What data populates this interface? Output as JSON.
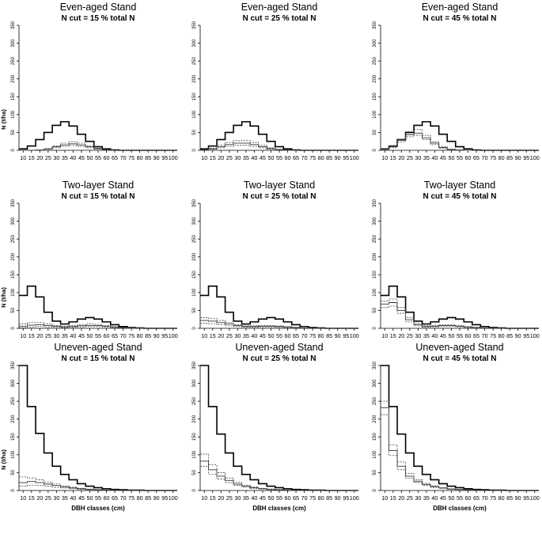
{
  "figure": {
    "x_label": "DBH classes (cm)",
    "y_label": "N (t/ha)"
  },
  "chart_data": [
    {
      "type": "line",
      "title": "Even-aged Stand",
      "subtitle": "N cut =  15 % total N",
      "xlabel": "",
      "ylabel": "N (t/ha)",
      "ylim": [
        0,
        350
      ],
      "xlim": [
        10,
        100
      ],
      "x": [
        10,
        15,
        20,
        25,
        30,
        35,
        40,
        45,
        50,
        55,
        60,
        65,
        70,
        75,
        80,
        85,
        90,
        95,
        100
      ],
      "series": [
        {
          "name": "",
          "style": "solid-bold",
          "values": [
            4,
            12,
            30,
            50,
            70,
            80,
            68,
            45,
            25,
            10,
            4,
            1,
            0,
            0,
            0,
            0,
            0,
            0,
            0
          ]
        },
        {
          "name": "",
          "style": "solid",
          "values": [
            0,
            0,
            1,
            4,
            10,
            15,
            18,
            15,
            10,
            5,
            2,
            0,
            0,
            0,
            0,
            0,
            0,
            0,
            0
          ]
        },
        {
          "name": "",
          "style": "dotted",
          "values": [
            0,
            0,
            1,
            5,
            12,
            20,
            24,
            20,
            13,
            6,
            2,
            0,
            0,
            0,
            0,
            0,
            0,
            0,
            0
          ]
        },
        {
          "name": "",
          "style": "dotted",
          "values": [
            0,
            0,
            0,
            3,
            7,
            11,
            13,
            11,
            7,
            3,
            1,
            0,
            0,
            0,
            0,
            0,
            0,
            0,
            0
          ]
        }
      ]
    },
    {
      "type": "line",
      "title": "Even-aged Stand",
      "subtitle": "N cut =  25 % total N",
      "xlabel": "",
      "ylabel": "",
      "ylim": [
        0,
        350
      ],
      "xlim": [
        10,
        100
      ],
      "x": [
        10,
        15,
        20,
        25,
        30,
        35,
        40,
        45,
        50,
        55,
        60,
        65,
        70,
        75,
        80,
        85,
        90,
        95,
        100
      ],
      "series": [
        {
          "name": "",
          "style": "solid-bold",
          "values": [
            4,
            12,
            30,
            50,
            70,
            80,
            68,
            45,
            25,
            10,
            4,
            1,
            0,
            0,
            0,
            0,
            0,
            0,
            0
          ]
        },
        {
          "name": "",
          "style": "solid",
          "values": [
            1,
            4,
            10,
            16,
            20,
            20,
            16,
            10,
            5,
            2,
            1,
            0,
            0,
            0,
            0,
            0,
            0,
            0,
            0
          ]
        },
        {
          "name": "",
          "style": "dotted",
          "values": [
            2,
            6,
            14,
            22,
            27,
            28,
            22,
            14,
            7,
            3,
            1,
            0,
            0,
            0,
            0,
            0,
            0,
            0,
            0
          ]
        },
        {
          "name": "",
          "style": "dotted",
          "values": [
            1,
            3,
            7,
            11,
            14,
            14,
            11,
            7,
            3,
            1,
            0,
            0,
            0,
            0,
            0,
            0,
            0,
            0,
            0
          ]
        }
      ]
    },
    {
      "type": "line",
      "title": "Even-aged Stand",
      "subtitle": "N cut =  45 % total N",
      "xlabel": "",
      "ylabel": "",
      "ylim": [
        0,
        350
      ],
      "xlim": [
        10,
        100
      ],
      "x": [
        10,
        15,
        20,
        25,
        30,
        35,
        40,
        45,
        50,
        55,
        60,
        65,
        70,
        75,
        80,
        85,
        90,
        95,
        100
      ],
      "series": [
        {
          "name": "",
          "style": "solid-bold",
          "values": [
            4,
            12,
            30,
            50,
            70,
            80,
            68,
            45,
            25,
            10,
            4,
            1,
            0,
            0,
            0,
            0,
            0,
            0,
            0
          ]
        },
        {
          "name": "",
          "style": "solid",
          "values": [
            3,
            10,
            28,
            44,
            48,
            35,
            20,
            8,
            3,
            1,
            0,
            0,
            0,
            0,
            0,
            0,
            0,
            0,
            0
          ]
        },
        {
          "name": "",
          "style": "dotted",
          "values": [
            4,
            12,
            30,
            52,
            58,
            42,
            24,
            10,
            3,
            1,
            0,
            0,
            0,
            0,
            0,
            0,
            0,
            0,
            0
          ]
        },
        {
          "name": "",
          "style": "dotted",
          "values": [
            2,
            8,
            24,
            38,
            42,
            30,
            16,
            6,
            2,
            0,
            0,
            0,
            0,
            0,
            0,
            0,
            0,
            0,
            0
          ]
        }
      ]
    },
    {
      "type": "line",
      "title": "Two-layer Stand",
      "subtitle": "N cut =  15 % total N",
      "xlabel": "",
      "ylabel": "N (t/ha)",
      "ylim": [
        0,
        350
      ],
      "xlim": [
        10,
        100
      ],
      "x": [
        10,
        15,
        20,
        25,
        30,
        35,
        40,
        45,
        50,
        55,
        60,
        65,
        70,
        75,
        80,
        85,
        90,
        95,
        100
      ],
      "series": [
        {
          "name": "",
          "style": "solid-bold",
          "values": [
            92,
            118,
            88,
            45,
            20,
            12,
            18,
            26,
            30,
            26,
            18,
            10,
            5,
            2,
            1,
            0,
            0,
            0,
            0
          ]
        },
        {
          "name": "",
          "style": "solid",
          "values": [
            6,
            9,
            10,
            8,
            6,
            4,
            5,
            7,
            8,
            8,
            6,
            3,
            2,
            1,
            0,
            0,
            0,
            0,
            0
          ]
        },
        {
          "name": "",
          "style": "dotted",
          "values": [
            12,
            16,
            16,
            12,
            8,
            6,
            8,
            10,
            12,
            11,
            8,
            5,
            2,
            1,
            0,
            0,
            0,
            0,
            0
          ]
        },
        {
          "name": "",
          "style": "dotted",
          "values": [
            2,
            4,
            5,
            4,
            3,
            2,
            3,
            4,
            5,
            5,
            4,
            2,
            1,
            0,
            0,
            0,
            0,
            0,
            0
          ]
        }
      ]
    },
    {
      "type": "line",
      "title": "Two-layer Stand",
      "subtitle": "N cut =  25 % total N",
      "xlabel": "",
      "ylabel": "",
      "ylim": [
        0,
        350
      ],
      "xlim": [
        10,
        100
      ],
      "x": [
        10,
        15,
        20,
        25,
        30,
        35,
        40,
        45,
        50,
        55,
        60,
        65,
        70,
        75,
        80,
        85,
        90,
        95,
        100
      ],
      "series": [
        {
          "name": "",
          "style": "solid-bold",
          "values": [
            92,
            118,
            88,
            45,
            20,
            12,
            18,
            26,
            30,
            26,
            18,
            10,
            5,
            2,
            1,
            0,
            0,
            0,
            0
          ]
        },
        {
          "name": "",
          "style": "solid",
          "values": [
            22,
            20,
            16,
            12,
            8,
            5,
            5,
            6,
            6,
            5,
            4,
            2,
            1,
            0,
            0,
            0,
            0,
            0,
            0
          ]
        },
        {
          "name": "",
          "style": "dotted",
          "values": [
            30,
            28,
            22,
            16,
            10,
            7,
            7,
            8,
            8,
            7,
            5,
            3,
            1,
            0,
            0,
            0,
            0,
            0,
            0
          ]
        },
        {
          "name": "",
          "style": "dotted",
          "values": [
            14,
            13,
            10,
            7,
            5,
            3,
            3,
            4,
            4,
            3,
            2,
            1,
            0,
            0,
            0,
            0,
            0,
            0,
            0
          ]
        }
      ]
    },
    {
      "type": "line",
      "title": "Two-layer Stand",
      "subtitle": "N cut =  45 % total N",
      "xlabel": "",
      "ylabel": "",
      "ylim": [
        0,
        350
      ],
      "xlim": [
        10,
        100
      ],
      "x": [
        10,
        15,
        20,
        25,
        30,
        35,
        40,
        45,
        50,
        55,
        60,
        65,
        70,
        75,
        80,
        85,
        90,
        95,
        100
      ],
      "series": [
        {
          "name": "",
          "style": "solid-bold",
          "values": [
            92,
            118,
            88,
            45,
            20,
            12,
            18,
            26,
            30,
            26,
            18,
            10,
            5,
            2,
            1,
            0,
            0,
            0,
            0
          ]
        },
        {
          "name": "",
          "style": "solid",
          "values": [
            68,
            72,
            50,
            24,
            10,
            5,
            6,
            8,
            8,
            6,
            4,
            2,
            1,
            0,
            0,
            0,
            0,
            0,
            0
          ]
        },
        {
          "name": "",
          "style": "dotted",
          "values": [
            76,
            82,
            58,
            30,
            14,
            7,
            8,
            10,
            10,
            8,
            5,
            3,
            1,
            0,
            0,
            0,
            0,
            0,
            0
          ]
        },
        {
          "name": "",
          "style": "dotted",
          "values": [
            58,
            62,
            42,
            18,
            7,
            3,
            4,
            5,
            5,
            4,
            2,
            1,
            0,
            0,
            0,
            0,
            0,
            0,
            0
          ]
        }
      ]
    },
    {
      "type": "line",
      "title": "Uneven-aged Stand",
      "subtitle": "N cut =  15 % total N",
      "xlabel": "DBH classes (cm)",
      "ylabel": "N (t/ha)",
      "ylim": [
        0,
        350
      ],
      "xlim": [
        10,
        100
      ],
      "x": [
        10,
        15,
        20,
        25,
        30,
        35,
        40,
        45,
        50,
        55,
        60,
        65,
        70,
        75,
        80,
        85,
        90,
        95,
        100
      ],
      "series": [
        {
          "name": "",
          "style": "solid-bold",
          "values": [
            350,
            235,
            160,
            105,
            68,
            45,
            30,
            19,
            12,
            8,
            5,
            3,
            2,
            1,
            1,
            0,
            0,
            0,
            0
          ]
        },
        {
          "name": "",
          "style": "solid",
          "values": [
            22,
            25,
            22,
            18,
            14,
            10,
            7,
            5,
            3,
            2,
            1,
            1,
            0,
            0,
            0,
            0,
            0,
            0,
            0
          ]
        },
        {
          "name": "",
          "style": "dotted",
          "values": [
            38,
            35,
            30,
            24,
            18,
            13,
            9,
            6,
            4,
            3,
            2,
            1,
            0,
            0,
            0,
            0,
            0,
            0,
            0
          ]
        },
        {
          "name": "",
          "style": "dotted",
          "values": [
            12,
            15,
            14,
            12,
            9,
            7,
            5,
            3,
            2,
            1,
            1,
            0,
            0,
            0,
            0,
            0,
            0,
            0,
            0
          ]
        }
      ]
    },
    {
      "type": "line",
      "title": "Uneven-aged Stand",
      "subtitle": "N cut =  25 % total N",
      "xlabel": "DBH classes (cm)",
      "ylabel": "",
      "ylim": [
        0,
        350
      ],
      "xlim": [
        10,
        100
      ],
      "x": [
        10,
        15,
        20,
        25,
        30,
        35,
        40,
        45,
        50,
        55,
        60,
        65,
        70,
        75,
        80,
        85,
        90,
        95,
        100
      ],
      "series": [
        {
          "name": "",
          "style": "solid-bold",
          "values": [
            350,
            235,
            158,
            105,
            68,
            45,
            30,
            19,
            12,
            8,
            5,
            3,
            2,
            1,
            1,
            0,
            0,
            0,
            0
          ]
        },
        {
          "name": "",
          "style": "solid",
          "values": [
            82,
            58,
            40,
            28,
            18,
            12,
            8,
            5,
            3,
            2,
            1,
            1,
            0,
            0,
            0,
            0,
            0,
            0,
            0
          ]
        },
        {
          "name": "",
          "style": "dotted",
          "values": [
            102,
            72,
            50,
            35,
            23,
            15,
            10,
            6,
            4,
            3,
            2,
            1,
            0,
            0,
            0,
            0,
            0,
            0,
            0
          ]
        },
        {
          "name": "",
          "style": "dotted",
          "values": [
            68,
            46,
            32,
            22,
            14,
            9,
            6,
            4,
            2,
            1,
            1,
            0,
            0,
            0,
            0,
            0,
            0,
            0,
            0
          ]
        }
      ]
    },
    {
      "type": "line",
      "title": "Uneven-aged Stand",
      "subtitle": "N cut =  45 % total N",
      "xlabel": "DBH classes (cm)",
      "ylabel": "",
      "ylim": [
        0,
        350
      ],
      "xlim": [
        10,
        100
      ],
      "x": [
        10,
        15,
        20,
        25,
        30,
        35,
        40,
        45,
        50,
        55,
        60,
        65,
        70,
        75,
        80,
        85,
        90,
        95,
        100
      ],
      "series": [
        {
          "name": "",
          "style": "solid-bold",
          "values": [
            350,
            235,
            158,
            105,
            68,
            45,
            30,
            19,
            12,
            8,
            5,
            3,
            2,
            1,
            1,
            0,
            0,
            0,
            0
          ]
        },
        {
          "name": "",
          "style": "solid",
          "values": [
            232,
            112,
            68,
            40,
            26,
            17,
            11,
            7,
            4,
            3,
            2,
            1,
            0,
            0,
            0,
            0,
            0,
            0,
            0
          ]
        },
        {
          "name": "",
          "style": "dotted",
          "values": [
            250,
            128,
            80,
            48,
            30,
            20,
            13,
            8,
            5,
            3,
            2,
            1,
            0,
            0,
            0,
            0,
            0,
            0,
            0
          ]
        },
        {
          "name": "",
          "style": "dotted",
          "values": [
            212,
            98,
            58,
            34,
            22,
            14,
            9,
            6,
            3,
            2,
            1,
            1,
            0,
            0,
            0,
            0,
            0,
            0,
            0
          ]
        }
      ]
    }
  ]
}
